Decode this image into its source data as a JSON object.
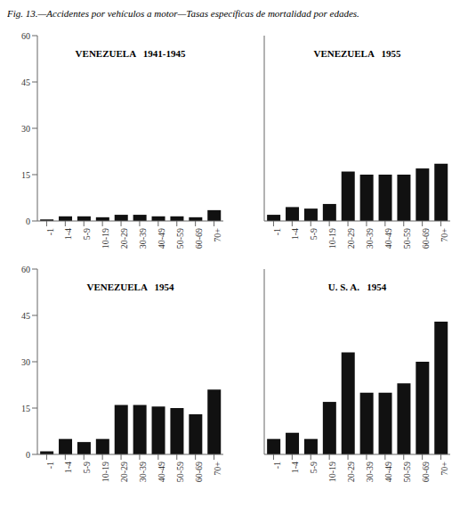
{
  "title": "Fig. 13.—Accidentes por vehículos a motor—Tasas específicas de mortalidad por edades.",
  "chart_data": [
    {
      "type": "bar",
      "annotation": "VENEZUELA   1941-1945",
      "categories": [
        "-1",
        "1-4",
        "5-9",
        "10-19",
        "20-29",
        "30-39",
        "40-49",
        "50-59",
        "60-69",
        "70+"
      ],
      "values": [
        0.5,
        1.5,
        1.5,
        1.2,
        2.0,
        2.0,
        1.5,
        1.5,
        1.2,
        3.5
      ],
      "color": "#111111",
      "ylim": [
        0,
        60
      ],
      "yticks": [
        0,
        15,
        30,
        45,
        60
      ],
      "grid": false
    },
    {
      "type": "bar",
      "annotation": "VENEZUELA   1955",
      "categories": [
        "-1",
        "1-4",
        "5-9",
        "10-19",
        "20-29",
        "30-39",
        "40-49",
        "50-59",
        "60-69",
        "70+"
      ],
      "values": [
        2.0,
        4.5,
        4.0,
        5.5,
        16.0,
        15.0,
        15.0,
        15.0,
        17.0,
        18.5
      ],
      "color": "#111111",
      "ylim": [
        0,
        60
      ],
      "yticks": [
        0,
        15,
        30,
        45,
        60
      ],
      "grid": false,
      "tick_labels": "x"
    },
    {
      "type": "bar",
      "annotation": "VENEZUELA   1954",
      "categories": [
        "-1",
        "1-4",
        "5-9",
        "10-19",
        "20-29",
        "30-39",
        "40-49",
        "50-59",
        "60-69",
        "70+"
      ],
      "values": [
        1.0,
        5.0,
        4.0,
        5.0,
        16.0,
        16.0,
        15.5,
        15.0,
        13.0,
        21.0
      ],
      "color": "#111111",
      "ylim": [
        0,
        60
      ],
      "yticks": [
        0,
        15,
        30,
        45,
        60
      ],
      "grid": false
    },
    {
      "type": "bar",
      "annotation": "U. S. A.   1954",
      "categories": [
        "-1",
        "1-4",
        "5-9",
        "10-19",
        "20-29",
        "30-39",
        "40-49",
        "50-59",
        "60-69",
        "70+"
      ],
      "values": [
        5.0,
        7.0,
        5.0,
        17.0,
        33.0,
        20.0,
        20.0,
        23.0,
        30.0,
        43.0
      ],
      "color": "#111111",
      "ylim": [
        0,
        60
      ],
      "yticks": [
        0,
        15,
        30,
        45,
        60
      ],
      "grid": false,
      "tick_labels": "x"
    }
  ]
}
